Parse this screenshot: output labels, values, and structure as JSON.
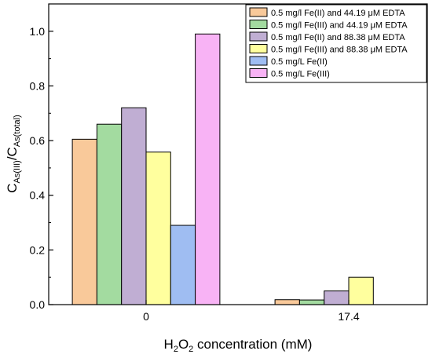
{
  "chart_data": {
    "type": "bar",
    "categories": [
      "0",
      "17.4"
    ],
    "series": [
      {
        "name": "0.5 mg/l Fe(II) and 44.19 μM EDTA",
        "color": "#f9c99a",
        "values": [
          0.605,
          0.018
        ]
      },
      {
        "name": "0.5 mg/l Fe(III) and 44.19 μM EDTA",
        "color": "#a3dba0",
        "values": [
          0.66,
          0.017
        ]
      },
      {
        "name": "0.5 mg/l Fe(II) and 88.38 μM EDTA",
        "color": "#c0aed3",
        "values": [
          0.72,
          0.05
        ]
      },
      {
        "name": "0.5 mg/l Fe(III) and 88.38 μM EDTA",
        "color": "#ffff9e",
        "values": [
          0.558,
          0.1
        ]
      },
      {
        "name": "0.5 mg/L Fe(II)",
        "color": "#9fbdf2",
        "values": [
          0.29,
          null
        ]
      },
      {
        "name": "0.5 mg/L Fe(III)",
        "color": "#f8b3f5",
        "values": [
          0.99,
          null
        ]
      }
    ],
    "ylim": [
      0,
      1.1
    ],
    "yticks": [
      "0.0",
      "0.2",
      "0.4",
      "0.6",
      "0.8",
      "1.0"
    ],
    "xlabel": {
      "prefix": "H",
      "sub": "2",
      "mid": "O",
      "sub2": "2",
      "suffix": " concentration (mM)"
    },
    "ylabel": {
      "main1": "C",
      "sub1": "As(III)",
      "sep": "/C",
      "sub2": "As(total)"
    },
    "legend_position": "top-right",
    "grid": false
  }
}
